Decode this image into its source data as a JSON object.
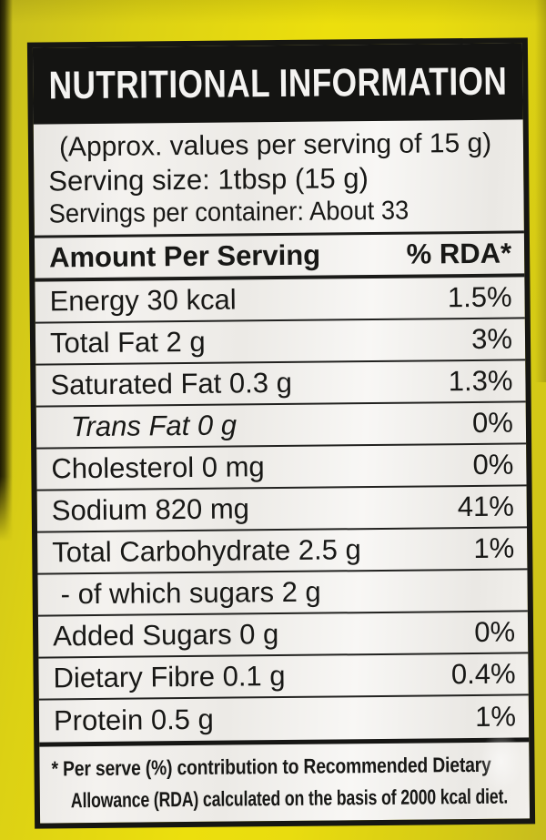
{
  "colors": {
    "background_yellow": "#e9dc0f",
    "panel_black": "#141412",
    "panel_white": "#f2f0ed",
    "ink": "#181816"
  },
  "label": {
    "title": "NUTRITIONAL INFORMATION",
    "serving_info": [
      "(Approx. values per serving of 15 g)",
      "Serving size: 1tbsp (15 g)",
      "Servings per container: About 33"
    ],
    "table": {
      "header": {
        "amount": "Amount Per Serving",
        "rda": "% RDA*"
      },
      "rows": [
        {
          "name": "Energy 30 kcal",
          "rda": "1.5%"
        },
        {
          "name": "Total Fat 2 g",
          "rda": "3%"
        },
        {
          "name": "Saturated Fat 0.3 g",
          "rda": "1.3%"
        },
        {
          "name": "Trans Fat 0 g",
          "rda": "0%",
          "italic": true,
          "indent": 2
        },
        {
          "name": "Cholesterol 0 mg",
          "rda": "0%"
        },
        {
          "name": "Sodium 820 mg",
          "rda": "41%"
        },
        {
          "name": "Total Carbohydrate 2.5 g",
          "rda": "1%"
        },
        {
          "name": "- of which sugars 2 g",
          "rda": "",
          "indent": 1
        },
        {
          "name": "Added Sugars 0 g",
          "rda": "0%"
        },
        {
          "name": "Dietary Fibre 0.1 g",
          "rda": "0.4%"
        },
        {
          "name": "Protein 0.5 g",
          "rda": "1%"
        }
      ]
    },
    "footnote_lines": [
      "* Per serve (%) contribution to Recommended Dietary",
      "Allowance (RDA) calculated on the basis of 2000 kcal diet."
    ]
  }
}
